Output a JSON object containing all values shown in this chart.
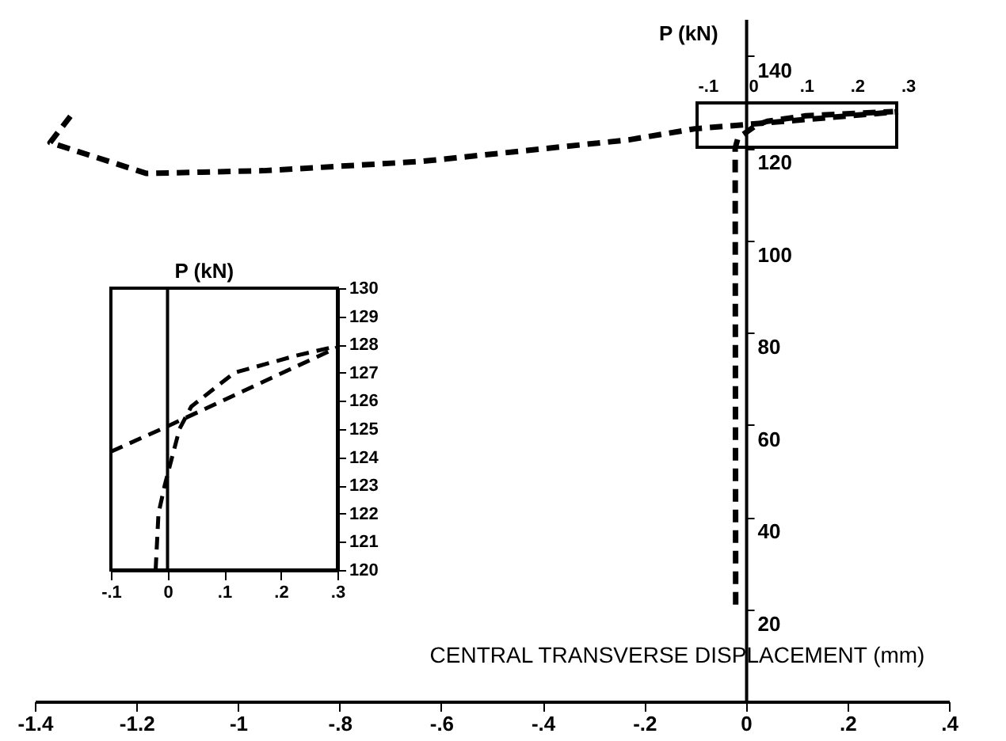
{
  "chart_data": [
    {
      "type": "line",
      "xlabel": "CENTRAL TRANSVERSE DISPLACEMENT (mm)",
      "ylabel": "P (kN)",
      "line_style": "dashed",
      "series": [
        {
          "color": "#000000",
          "x": [
            -0.02,
            -0.021,
            -0.016,
            -0.005,
            0.021,
            0.042,
            0.118,
            0.226,
            0.29
          ],
          "values": [
            21,
            120,
            122,
            123,
            125,
            125.8,
            127,
            127.6,
            127.9
          ]
        },
        {
          "color": "#000000",
          "x": [
            -1.33,
            -1.37,
            -1.18,
            -0.95,
            -0.64,
            -0.43,
            -0.23,
            -0.1,
            0,
            0.3
          ],
          "values": [
            126.9,
            121.2,
            114.5,
            115.1,
            117.1,
            119.5,
            121.8,
            124.2,
            125.1,
            127.9
          ]
        }
      ],
      "xlim": [
        -1.4,
        0.4
      ],
      "ylim": [
        0,
        148
      ],
      "xticks": [
        {
          "value": -1.4,
          "label": "-1.4"
        },
        {
          "value": -1.2,
          "label": "-1.2"
        },
        {
          "value": -1,
          "label": "-1"
        },
        {
          "value": -0.8,
          "label": "-.8"
        },
        {
          "value": -0.6,
          "label": "-.6"
        },
        {
          "value": -0.4,
          "label": "-.4"
        },
        {
          "value": -0.2,
          "label": "-.2"
        },
        {
          "value": 0,
          "label": "0"
        },
        {
          "value": 0.2,
          "label": ".2"
        },
        {
          "value": 0.4,
          "label": ".4"
        }
      ],
      "yticks": [
        20,
        40,
        60,
        80,
        100,
        120,
        140
      ],
      "grid": false,
      "x2lim": [
        -0.1,
        0.3
      ],
      "x2ticks": [
        {
          "value": -0.1,
          "label": "-.1"
        },
        {
          "value": 0,
          "label": "0"
        },
        {
          "value": 0.1,
          "label": ".1"
        },
        {
          "value": 0.2,
          "label": ".2"
        },
        {
          "value": 0.3,
          "label": ".3"
        }
      ]
    },
    {
      "type": "line",
      "ylabel": "P (kN)",
      "line_style": "dashed",
      "series": [
        {
          "color": "#000000",
          "x": [
            -0.021,
            -0.016,
            -0.005,
            0.021,
            0.042,
            0.118,
            0.226,
            0.29
          ],
          "values": [
            120,
            122,
            123,
            125,
            125.8,
            127,
            127.6,
            127.9
          ]
        },
        {
          "color": "#000000",
          "x": [
            -0.1,
            0,
            0.3
          ],
          "values": [
            124.2,
            125.1,
            127.9
          ]
        }
      ],
      "xlim": [
        -0.1,
        0.3
      ],
      "ylim": [
        120,
        130
      ],
      "xticks": [
        {
          "value": -0.1,
          "label": "-.1"
        },
        0,
        {
          "value": 0.1,
          "label": ".1"
        },
        {
          "value": 0.2,
          "label": ".2"
        },
        {
          "value": 0.3,
          "label": ".3"
        }
      ],
      "yticks": [
        120,
        121,
        122,
        123,
        124,
        125,
        126,
        127,
        128,
        129,
        130
      ],
      "ref_lines": [
        {
          "axis": "x",
          "value": 0,
          "color": "#000000"
        }
      ],
      "grid": false
    }
  ]
}
